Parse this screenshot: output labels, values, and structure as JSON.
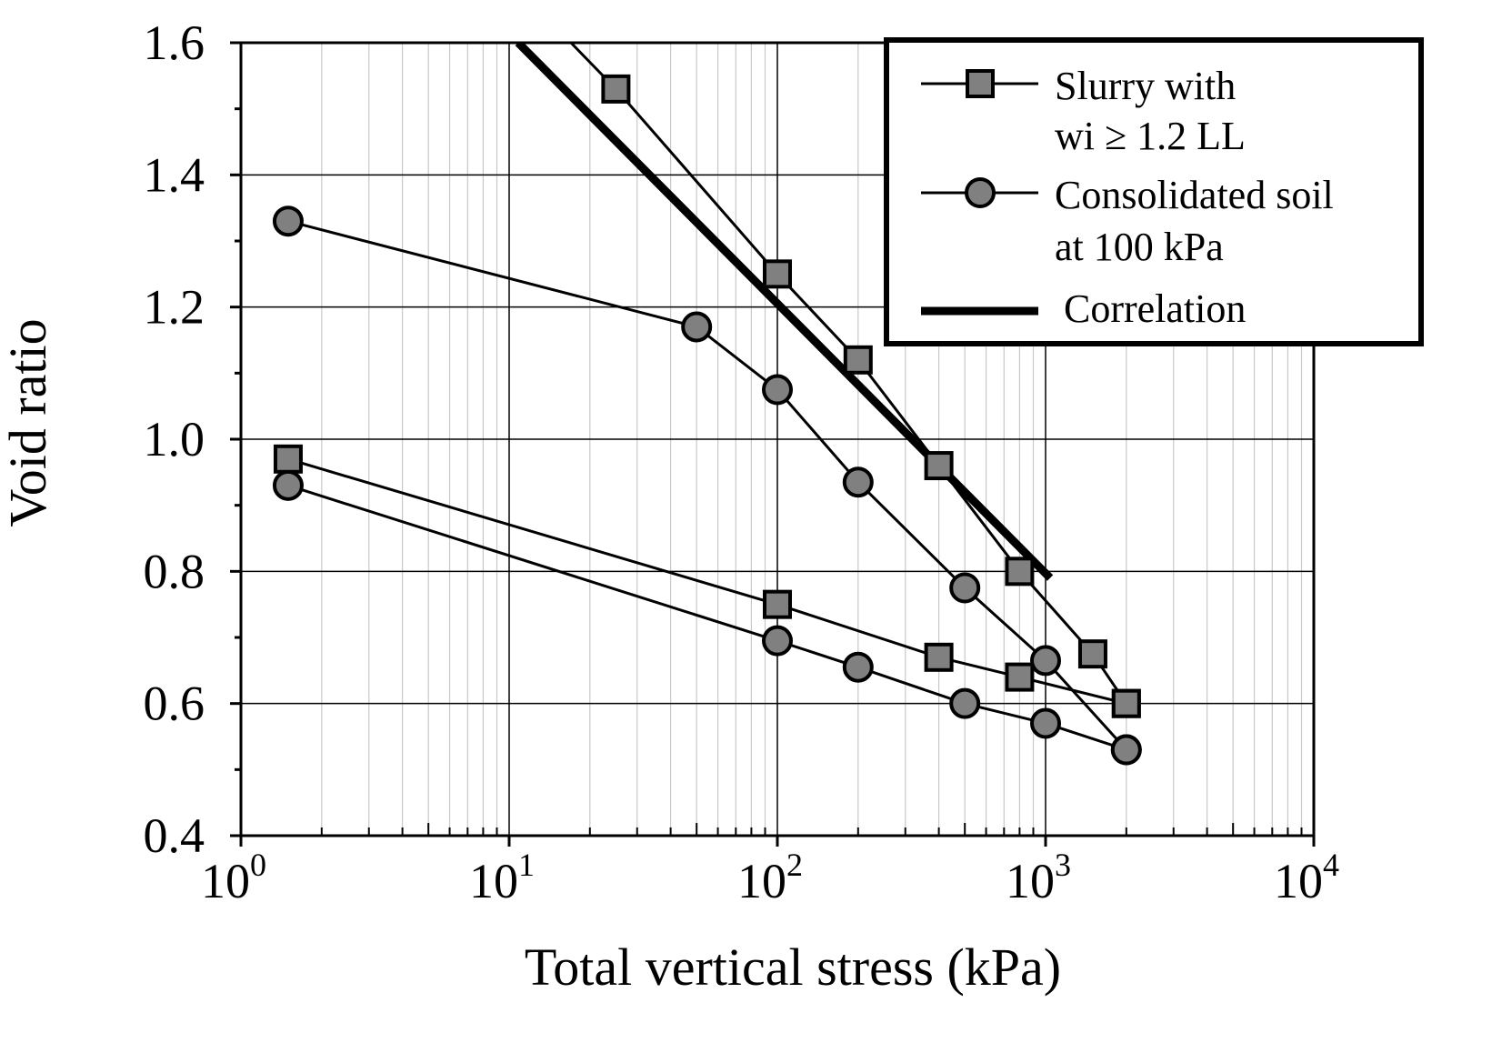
{
  "chart_data": {
    "type": "line",
    "title": "",
    "xlabel": "Total vertical stress (kPa)",
    "ylabel": "Void ratio",
    "xscale": "log",
    "xlim": [
      1,
      10000
    ],
    "ylim": [
      0.4,
      1.6
    ],
    "x_ticks": [
      {
        "base": "10",
        "exp": "0",
        "value": 1
      },
      {
        "base": "10",
        "exp": "1",
        "value": 10
      },
      {
        "base": "10",
        "exp": "2",
        "value": 100
      },
      {
        "base": "10",
        "exp": "3",
        "value": 1000
      },
      {
        "base": "10",
        "exp": "4",
        "value": 10000
      }
    ],
    "y_ticks": [
      "0.4",
      "0.6",
      "0.8",
      "1.0",
      "1.2",
      "1.4",
      "1.6"
    ],
    "grid": true,
    "legend_position": "top-right",
    "marker_fill": "#808080",
    "series": [
      {
        "name": "Slurry with wi ≥ 1.2 LL",
        "legend_lines": [
          "Slurry with",
          "wi ≥ 1.2 LL"
        ],
        "marker": "square",
        "branches": [
          {
            "x": [
              17,
              25,
              100,
              200,
              400,
              800,
              1500,
              2000
            ],
            "y": [
              1.6,
              1.53,
              1.25,
              1.12,
              0.96,
              0.8,
              0.675,
              0.6
            ],
            "first_point_unmarked": true
          },
          {
            "x": [
              1.5,
              100,
              400,
              800,
              2000
            ],
            "y": [
              0.97,
              0.75,
              0.67,
              0.64,
              0.6
            ]
          }
        ]
      },
      {
        "name": "Consolidated soil at 100 kPa",
        "legend_lines": [
          "Consolidated soil",
          "at 100 kPa"
        ],
        "marker": "circle",
        "branches": [
          {
            "x": [
              1.5,
              50,
              100,
              200,
              500,
              1000,
              2000
            ],
            "y": [
              1.33,
              1.17,
              1.075,
              0.935,
              0.775,
              0.665,
              0.53
            ]
          },
          {
            "x": [
              1.5,
              100,
              200,
              500,
              1000,
              2000
            ],
            "y": [
              0.93,
              0.695,
              0.655,
              0.6,
              0.57,
              0.53
            ]
          }
        ]
      },
      {
        "name": "Correlation",
        "legend_lines": [
          "Correlation"
        ],
        "marker": "none",
        "thick": true,
        "branches": [
          {
            "x": [
              10.8,
              1040
            ],
            "y": [
              1.6,
              0.79
            ]
          }
        ]
      }
    ]
  }
}
